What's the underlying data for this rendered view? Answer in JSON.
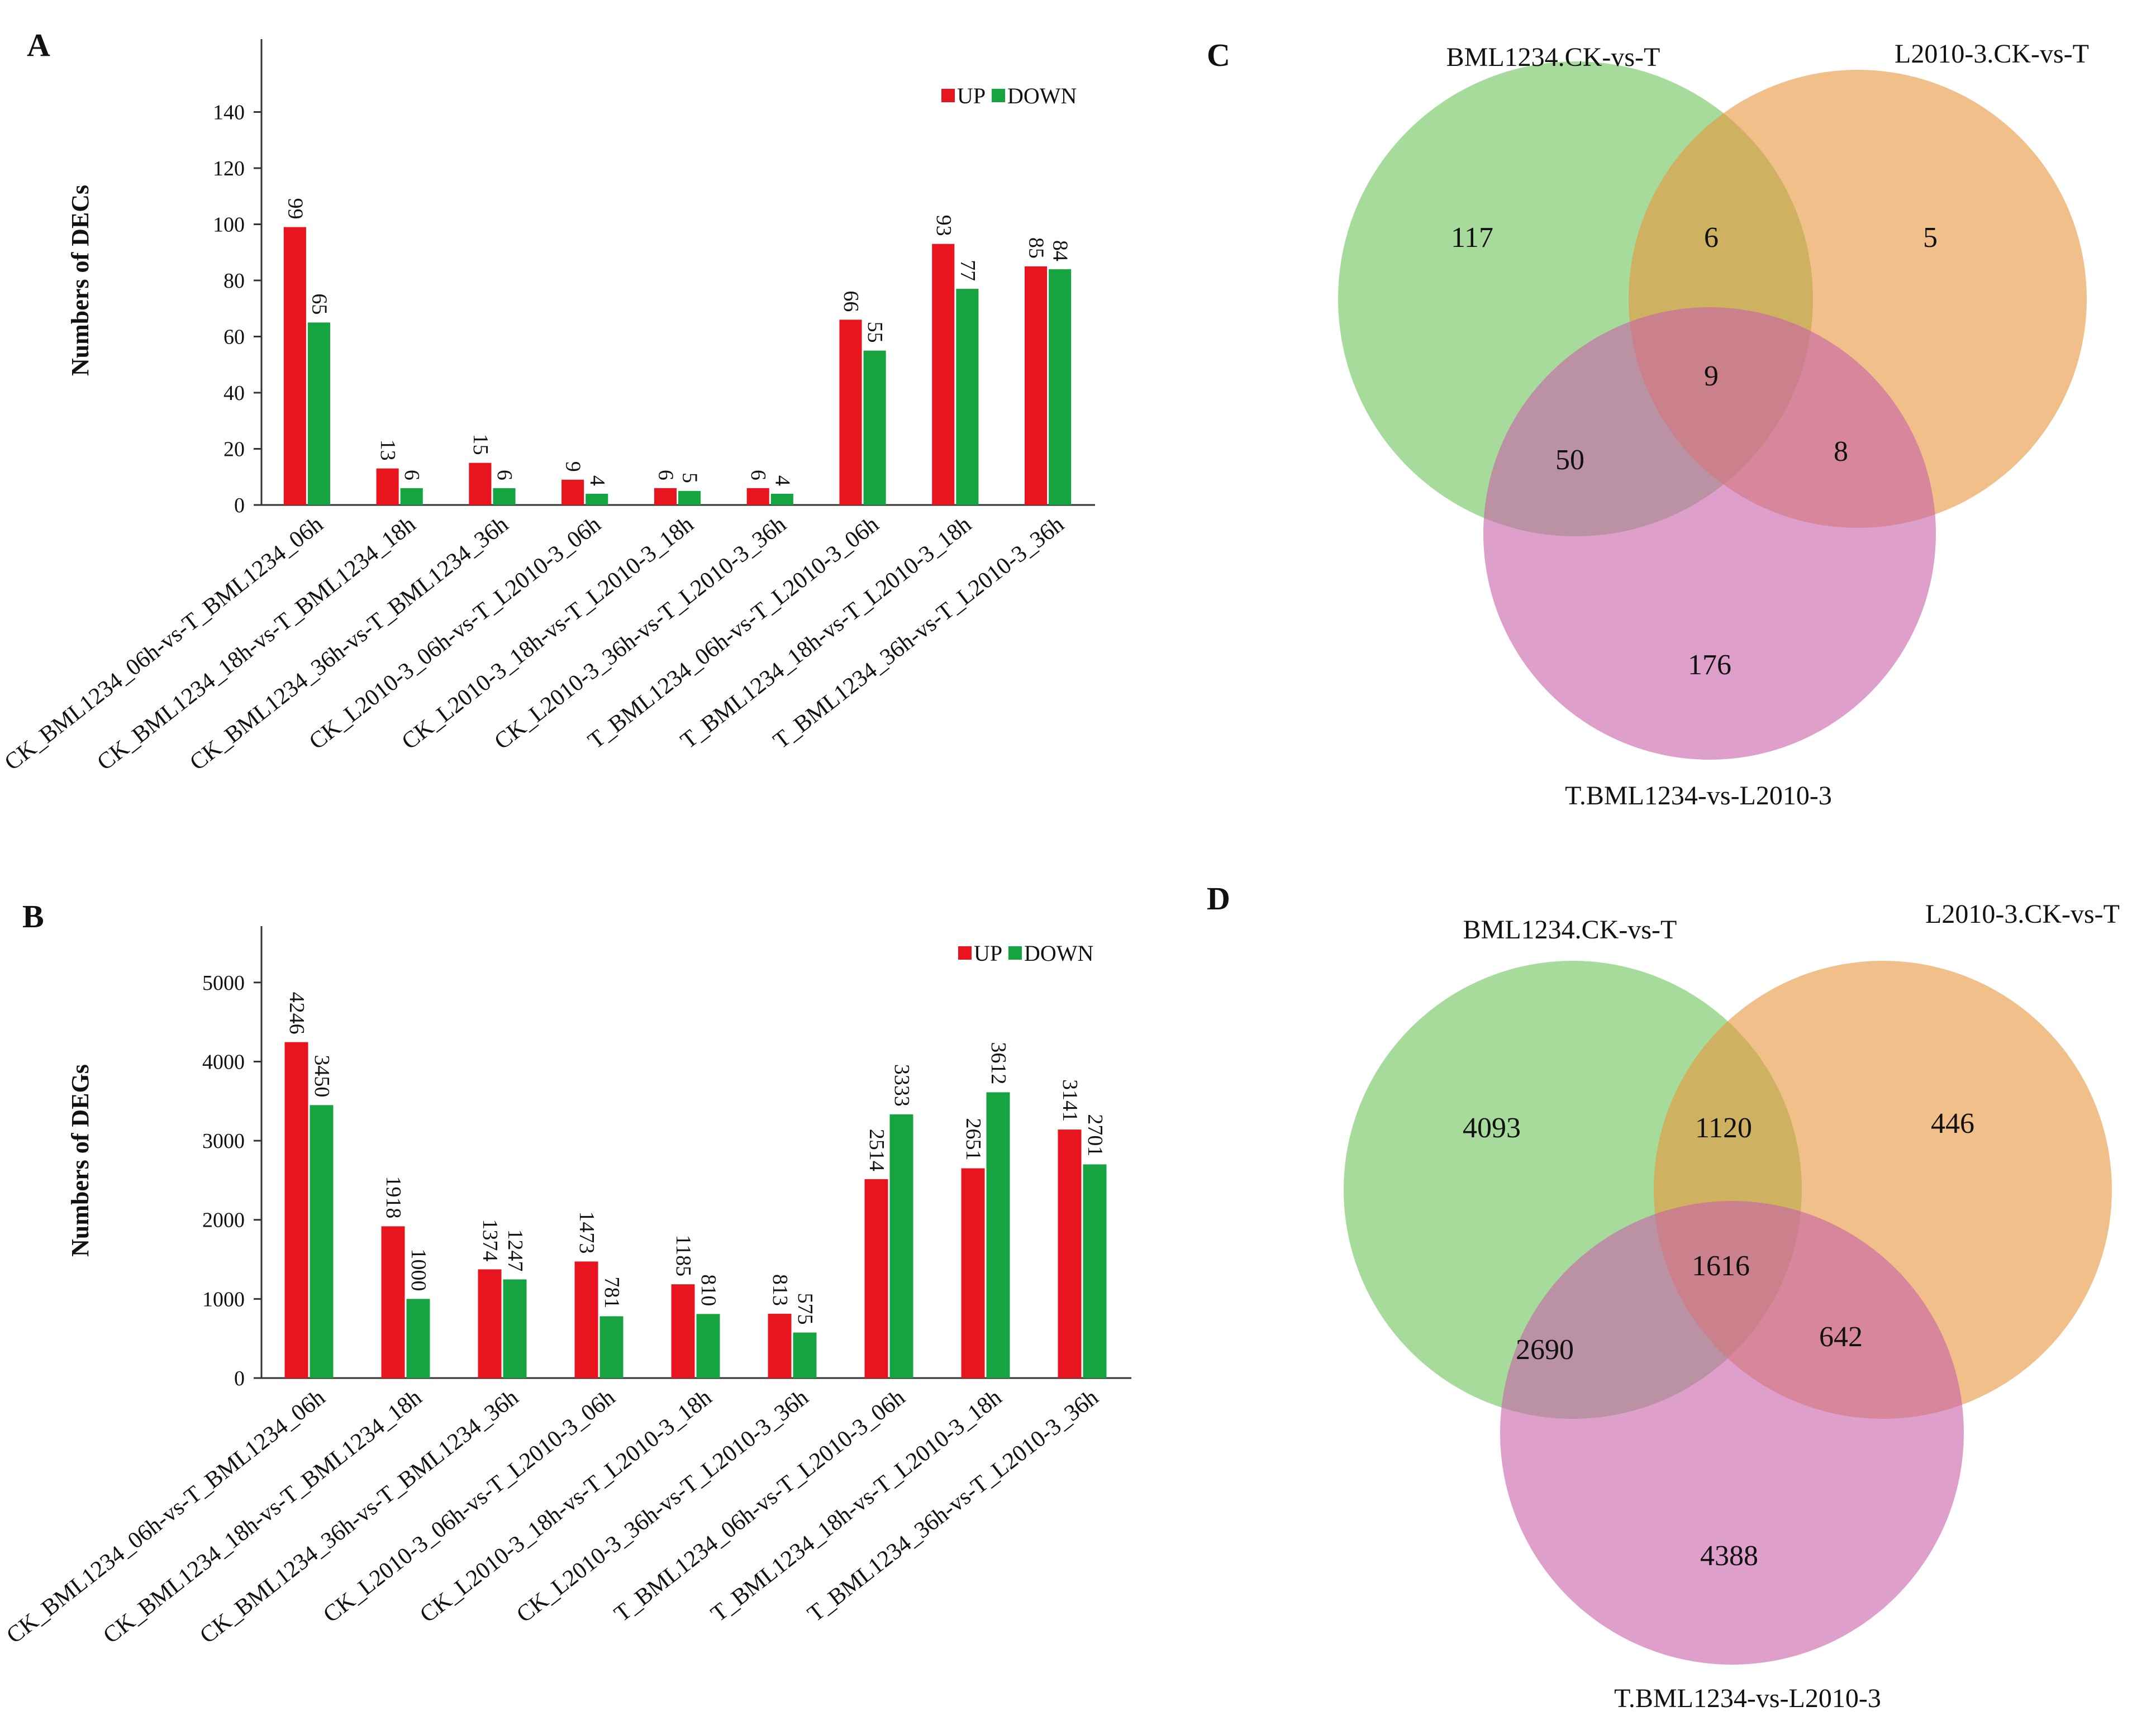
{
  "chart_data": [
    {
      "panel": "A",
      "type": "bar",
      "ylabel": "Numbers of DECs",
      "ylim": [
        0,
        160
      ],
      "yticks": [
        0,
        20,
        40,
        60,
        80,
        100,
        120,
        140
      ],
      "legend": [
        "UP",
        "DOWN"
      ],
      "legend_position": "top-right",
      "categories": [
        "CK_BML1234_06h-vs-T_BML1234_06h",
        "CK_BML1234_18h-vs-T_BML1234_18h",
        "CK_BML1234_36h-vs-T_BML1234_36h",
        "CK_L2010-3_06h-vs-T_L2010-3_06h",
        "CK_L2010-3_18h-vs-T_L2010-3_18h",
        "CK_L2010-3_36h-vs-T_L2010-3_36h",
        "T_BML1234_06h-vs-T_L2010-3_06h",
        "T_BML1234_18h-vs-T_L2010-3_18h",
        "T_BML1234_36h-vs-T_L2010-3_36h"
      ],
      "series": [
        {
          "name": "UP",
          "color": "#e8141e",
          "values": [
            99,
            13,
            15,
            9,
            6,
            6,
            66,
            93,
            85
          ]
        },
        {
          "name": "DOWN",
          "color": "#16a440",
          "values": [
            65,
            6,
            6,
            4,
            5,
            4,
            55,
            77,
            84
          ]
        }
      ]
    },
    {
      "panel": "B",
      "type": "bar",
      "ylabel": "Numbers of DEGs",
      "ylim": [
        0,
        5500
      ],
      "yticks": [
        0,
        1000,
        2000,
        3000,
        4000,
        5000
      ],
      "legend": [
        "UP",
        "DOWN"
      ],
      "legend_position": "top-right",
      "categories": [
        "CK_BML1234_06h-vs-T_BML1234_06h",
        "CK_BML1234_18h-vs-T_BML1234_18h",
        "CK_BML1234_36h-vs-T_BML1234_36h",
        "CK_L2010-3_06h-vs-T_L2010-3_06h",
        "CK_L2010-3_18h-vs-T_L2010-3_18h",
        "CK_L2010-3_36h-vs-T_L2010-3_36h",
        "T_BML1234_06h-vs-T_L2010-3_06h",
        "T_BML1234_18h-vs-T_L2010-3_18h",
        "T_BML1234_36h-vs-T_L2010-3_36h"
      ],
      "series": [
        {
          "name": "UP",
          "color": "#e8141e",
          "values": [
            4246,
            1918,
            1374,
            1473,
            1185,
            813,
            2514,
            2651,
            3141
          ]
        },
        {
          "name": "DOWN",
          "color": "#16a440",
          "values": [
            3450,
            1000,
            1247,
            781,
            810,
            575,
            3333,
            3612,
            2701
          ]
        }
      ]
    },
    {
      "panel": "C",
      "type": "venn",
      "sets": [
        {
          "name": "BML1234.CK-vs-T",
          "color": "#6cc35a"
        },
        {
          "name": "L2010-3.CK-vs-T",
          "color": "#e8953a"
        },
        {
          "name": "T.BML1234-vs-L2010-3",
          "color": "#c860a8"
        }
      ],
      "regions": {
        "a_only": 117,
        "b_only": 5,
        "c_only": 176,
        "ab": 6,
        "ac": 50,
        "bc": 8,
        "abc": 9
      }
    },
    {
      "panel": "D",
      "type": "venn",
      "sets": [
        {
          "name": "BML1234.CK-vs-T",
          "color": "#6cc35a"
        },
        {
          "name": "L2010-3.CK-vs-T",
          "color": "#e8953a"
        },
        {
          "name": "T.BML1234-vs-L2010-3",
          "color": "#c860a8"
        }
      ],
      "regions": {
        "a_only": 4093,
        "b_only": 446,
        "c_only": 4388,
        "ab": 1120,
        "ac": 2690,
        "bc": 642,
        "abc": 1616
      }
    }
  ]
}
